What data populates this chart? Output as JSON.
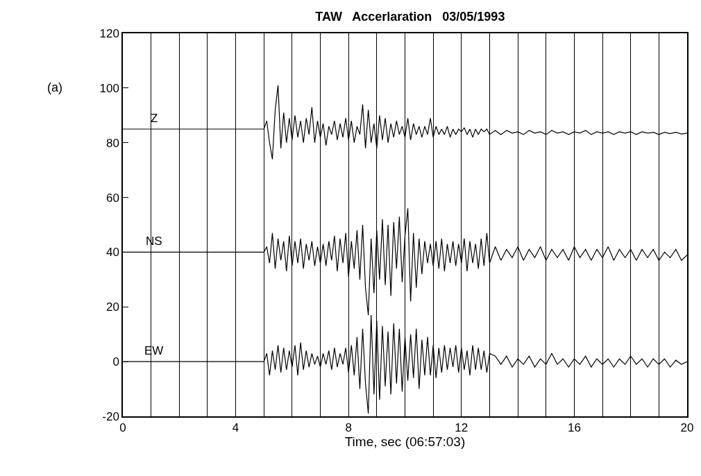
{
  "chart_data": {
    "type": "line",
    "title": "TAW   Accerlaration   03/05/1993",
    "xlabel": "Time, sec (06:57:03)",
    "annotations": [
      "(a)"
    ],
    "x": [
      0,
      5.0,
      5.1,
      5.2,
      5.3,
      5.4,
      5.5,
      5.6,
      5.7,
      5.8,
      5.9,
      6.0,
      6.1,
      6.2,
      6.3,
      6.4,
      6.5,
      6.6,
      6.7,
      6.8,
      6.9,
      7.0,
      7.1,
      7.2,
      7.3,
      7.4,
      7.5,
      7.6,
      7.7,
      7.8,
      7.9,
      8.0,
      8.1,
      8.2,
      8.3,
      8.4,
      8.5,
      8.6,
      8.7,
      8.8,
      8.9,
      9.0,
      9.1,
      9.2,
      9.3,
      9.4,
      9.5,
      9.6,
      9.7,
      9.8,
      9.9,
      10.0,
      10.1,
      10.2,
      10.3,
      10.4,
      10.5,
      10.6,
      10.7,
      10.8,
      10.9,
      11.0,
      11.1,
      11.2,
      11.3,
      11.4,
      11.5,
      11.6,
      11.7,
      11.8,
      11.9,
      12.0,
      12.1,
      12.2,
      12.3,
      12.4,
      12.5,
      12.6,
      12.7,
      12.8,
      12.9,
      13.0,
      13.2,
      13.4,
      13.6,
      13.8,
      14.0,
      14.2,
      14.4,
      14.6,
      14.8,
      15.0,
      15.2,
      15.4,
      15.6,
      15.8,
      16.0,
      16.2,
      16.4,
      16.6,
      16.8,
      17.0,
      17.2,
      17.4,
      17.6,
      17.8,
      18.0,
      18.2,
      18.4,
      18.6,
      18.8,
      19.0,
      19.2,
      19.4,
      19.6,
      19.8,
      20.0
    ],
    "series": [
      {
        "name": "Z",
        "color": "#000000",
        "values": [
          85,
          85,
          88,
          80,
          74,
          92,
          101,
          78,
          91,
          80,
          89,
          81,
          90,
          82,
          88,
          80,
          89,
          83,
          93,
          80,
          88,
          82,
          87,
          79,
          86,
          83,
          88,
          81,
          87,
          82,
          89,
          81,
          88,
          80,
          86,
          83,
          94,
          78,
          92,
          80,
          87,
          78,
          90,
          81,
          89,
          80,
          87,
          82,
          88,
          83,
          86,
          82,
          89,
          81,
          87,
          83,
          86,
          82,
          86,
          83,
          89,
          82,
          86,
          83,
          85,
          83,
          86,
          82,
          85,
          83,
          85,
          84,
          85.5,
          83,
          85,
          82,
          85,
          83,
          85,
          84,
          85,
          83,
          84.5,
          83,
          84.5,
          83.5,
          84,
          83,
          84.5,
          83.5,
          84,
          83,
          84.5,
          83.5,
          84,
          83,
          84,
          83.5,
          84.5,
          83,
          84,
          83.5,
          84,
          83,
          84,
          83.5,
          84,
          83,
          84,
          83.5,
          83.8,
          83,
          83.8,
          83.3,
          83.8,
          83.2,
          83.5
        ]
      },
      {
        "name": "NS",
        "color": "#000000",
        "values": [
          40,
          40,
          42,
          36,
          47,
          34,
          45,
          37,
          44,
          33,
          46,
          35,
          44,
          36,
          45,
          34,
          43,
          37,
          44,
          35,
          42,
          36,
          43,
          35,
          44,
          37,
          46,
          33,
          45,
          36,
          47,
          31,
          44,
          34,
          48,
          30,
          50,
          27,
          17,
          45,
          25,
          48,
          30,
          52,
          28,
          50,
          24,
          51,
          34,
          53,
          29,
          46,
          56,
          22,
          47,
          27,
          45,
          32,
          44,
          36,
          43,
          35,
          44,
          34,
          45,
          33,
          43,
          36,
          44,
          35,
          43,
          36,
          45,
          33,
          44,
          36,
          43,
          34,
          45,
          35,
          47,
          36,
          42,
          37,
          41,
          38,
          42,
          37,
          41,
          38,
          42,
          37,
          41,
          38,
          41,
          37,
          42,
          38,
          41,
          37,
          41,
          38,
          42,
          37,
          41,
          38,
          41,
          37,
          41,
          38,
          41,
          37,
          40,
          38,
          41,
          37,
          39
        ]
      },
      {
        "name": "EW",
        "color": "#000000",
        "values": [
          0,
          0,
          3,
          -5,
          4,
          -3,
          6,
          -4,
          5,
          -3,
          4,
          -2,
          6,
          -5,
          7,
          -3,
          4,
          -2,
          3,
          -1,
          2,
          -2,
          3,
          -1,
          4,
          -3,
          5,
          -2,
          3,
          -1,
          5,
          -4,
          6,
          -5,
          9,
          -10,
          12,
          -8,
          -19,
          17,
          -12,
          15,
          -14,
          13,
          -9,
          11,
          -12,
          14,
          -8,
          12,
          -11,
          9,
          -7,
          10,
          -6,
          12,
          -10,
          8,
          -5,
          9,
          -5,
          6,
          -6,
          5,
          -4,
          6,
          -3,
          5,
          -2,
          6,
          -4,
          5,
          -3,
          4,
          -5,
          6,
          -3,
          5,
          -3,
          4,
          -4,
          3,
          2,
          -1,
          2,
          -2,
          1,
          -1,
          2,
          -2,
          1,
          -1,
          3,
          -1,
          1,
          -2,
          1,
          -1,
          2,
          -2,
          1,
          -1,
          1,
          -2,
          1,
          -1,
          2,
          -1,
          1,
          -2,
          1,
          -1,
          1,
          -2,
          0.5,
          -1,
          0
        ]
      }
    ],
    "xlim": [
      0,
      20
    ],
    "xticks": [
      0,
      {
        "value": 1,
        "label": null
      },
      {
        "value": 2,
        "label": null
      },
      {
        "value": 3,
        "label": null
      },
      4,
      {
        "value": 5,
        "label": null
      },
      {
        "value": 6,
        "label": null
      },
      {
        "value": 7,
        "label": null
      },
      8,
      {
        "value": 9,
        "label": null
      },
      {
        "value": 10,
        "label": null
      },
      {
        "value": 11,
        "label": null
      },
      12,
      {
        "value": 13,
        "label": null
      },
      {
        "value": 14,
        "label": null
      },
      {
        "value": 15,
        "label": null
      },
      16,
      {
        "value": 17,
        "label": null
      },
      {
        "value": 18,
        "label": null
      },
      {
        "value": 19,
        "label": null
      },
      20
    ],
    "ylim": [
      -20,
      120
    ],
    "yticks": [
      -20,
      0,
      20,
      40,
      60,
      80,
      100,
      120
    ],
    "grid": "x",
    "legend": false,
    "marker": "none",
    "line_style": "solid"
  }
}
